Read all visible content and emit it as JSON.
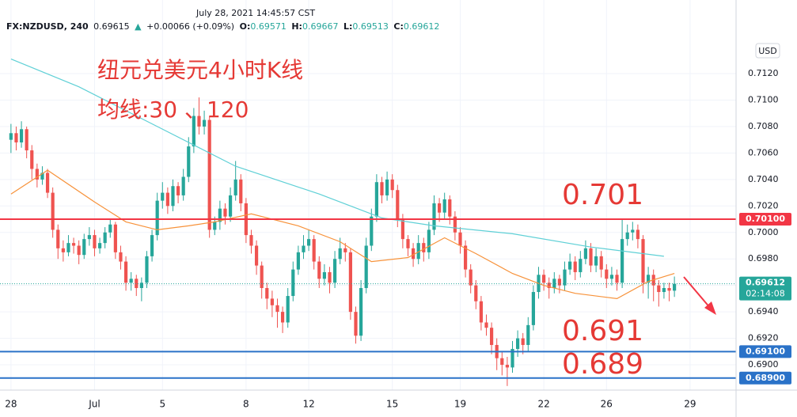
{
  "header": {
    "time": "July 28, 2021 14:45:57 CST",
    "symbol": "FX:NZDUSD, 240",
    "price": "0.69615",
    "arrow": "▲",
    "change": "+0.00066 (+0.09%)",
    "o_label": "O:",
    "o": "0.69571",
    "h_label": "H:",
    "h": "0.69667",
    "l_label": "L:",
    "l": "0.69513",
    "c_label": "C:",
    "c": "0.69612",
    "currency": "USD"
  },
  "chart_data": {
    "type": "candlestick",
    "annotations": [
      "纽元兑美元4小时K线",
      "均线:30 、120",
      "0.701",
      "0.691",
      "0.689"
    ],
    "up_color": "#26a69a",
    "down_color": "#ef5350",
    "xlim": [
      -2.1,
      138.8
    ],
    "xticks": [
      {
        "value": 0,
        "label": "28"
      },
      {
        "value": 16,
        "label": "Jul"
      },
      {
        "value": 29,
        "label": "5"
      },
      {
        "value": 45,
        "label": "8"
      },
      {
        "value": 57,
        "label": "12"
      },
      {
        "value": 73,
        "label": "15"
      },
      {
        "value": 86,
        "label": "19"
      },
      {
        "value": 102,
        "label": "22"
      },
      {
        "value": 114,
        "label": "26"
      },
      {
        "value": 130,
        "label": "29"
      }
    ],
    "ylim": [
      0.68809,
      0.71756
    ],
    "yticks": [
      {
        "value": 0.69,
        "label": "0.6900"
      },
      {
        "value": 0.692,
        "label": "0.6920"
      },
      {
        "value": 0.694,
        "label": "0.6940"
      },
      {
        "value": 0.696,
        "label": "0.6960"
      },
      {
        "value": 0.698,
        "label": "0.6980"
      },
      {
        "value": 0.7,
        "label": "0.7000"
      },
      {
        "value": 0.702,
        "label": "0.7020"
      },
      {
        "value": 0.704,
        "label": "0.7040"
      },
      {
        "value": 0.706,
        "label": "0.7060"
      },
      {
        "value": 0.708,
        "label": "0.7080"
      },
      {
        "value": 0.71,
        "label": "0.7100"
      },
      {
        "value": 0.712,
        "label": "0.7120"
      }
    ],
    "grid": true,
    "candles": [
      [
        0.707,
        0.7082,
        0.706,
        0.7075
      ],
      [
        0.7075,
        0.708,
        0.7062,
        0.7068
      ],
      [
        0.7068,
        0.7084,
        0.7064,
        0.7078
      ],
      [
        0.7078,
        0.708,
        0.7056,
        0.7062
      ],
      [
        0.7062,
        0.7066,
        0.704,
        0.7048
      ],
      [
        0.7048,
        0.7052,
        0.7034,
        0.704
      ],
      [
        0.704,
        0.705,
        0.7036,
        0.7045
      ],
      [
        0.7045,
        0.7048,
        0.7026,
        0.703
      ],
      [
        0.703,
        0.7034,
        0.6996,
        0.7002
      ],
      [
        0.7002,
        0.7006,
        0.698,
        0.6988
      ],
      [
        0.6988,
        0.6994,
        0.6978,
        0.6985
      ],
      [
        0.6985,
        0.6998,
        0.6982,
        0.6992
      ],
      [
        0.6992,
        0.6996,
        0.6984,
        0.699
      ],
      [
        0.699,
        0.6994,
        0.6976,
        0.6983
      ],
      [
        0.6983,
        0.6999,
        0.698,
        0.6995
      ],
      [
        0.6995,
        0.7004,
        0.699,
        0.6998
      ],
      [
        0.6998,
        0.7002,
        0.6982,
        0.6988
      ],
      [
        0.6988,
        0.6996,
        0.6984,
        0.6992
      ],
      [
        0.6992,
        0.7004,
        0.6988,
        0.7
      ],
      [
        0.7,
        0.701,
        0.6996,
        0.7006
      ],
      [
        0.7006,
        0.7008,
        0.698,
        0.6985
      ],
      [
        0.6985,
        0.699,
        0.6972,
        0.6978
      ],
      [
        0.6978,
        0.6982,
        0.6956,
        0.6962
      ],
      [
        0.6962,
        0.697,
        0.6956,
        0.6965
      ],
      [
        0.6965,
        0.6968,
        0.6952,
        0.6958
      ],
      [
        0.6958,
        0.6966,
        0.6948,
        0.6962
      ],
      [
        0.6962,
        0.6986,
        0.6958,
        0.6982
      ],
      [
        0.6982,
        0.7002,
        0.6978,
        0.6998
      ],
      [
        0.6998,
        0.703,
        0.6994,
        0.7024
      ],
      [
        0.7024,
        0.7038,
        0.7018,
        0.703
      ],
      [
        0.703,
        0.7034,
        0.7014,
        0.702
      ],
      [
        0.702,
        0.704,
        0.7016,
        0.7035
      ],
      [
        0.7035,
        0.7038,
        0.7022,
        0.7028
      ],
      [
        0.7028,
        0.7048,
        0.7024,
        0.7042
      ],
      [
        0.7042,
        0.7072,
        0.7038,
        0.7065
      ],
      [
        0.7065,
        0.7094,
        0.706,
        0.7088
      ],
      [
        0.7088,
        0.7102,
        0.7074,
        0.708
      ],
      [
        0.708,
        0.7092,
        0.7074,
        0.7085
      ],
      [
        0.7085,
        0.7088,
        0.6996,
        0.7002
      ],
      [
        0.7002,
        0.7012,
        0.6998,
        0.7008
      ],
      [
        0.7008,
        0.7024,
        0.7002,
        0.7018
      ],
      [
        0.7018,
        0.7022,
        0.7006,
        0.7012
      ],
      [
        0.7012,
        0.7034,
        0.7008,
        0.7028
      ],
      [
        0.7028,
        0.7054,
        0.7024,
        0.704
      ],
      [
        0.704,
        0.7044,
        0.7016,
        0.7022
      ],
      [
        0.7022,
        0.7026,
        0.6992,
        0.6998
      ],
      [
        0.6998,
        0.7002,
        0.6984,
        0.699
      ],
      [
        0.699,
        0.6994,
        0.6968,
        0.6975
      ],
      [
        0.6975,
        0.6978,
        0.695,
        0.6958
      ],
      [
        0.6958,
        0.6962,
        0.6942,
        0.695
      ],
      [
        0.695,
        0.6956,
        0.6936,
        0.6945
      ],
      [
        0.6945,
        0.695,
        0.6928,
        0.694
      ],
      [
        0.694,
        0.6944,
        0.6924,
        0.6932
      ],
      [
        0.6932,
        0.6958,
        0.6928,
        0.6952
      ],
      [
        0.6952,
        0.6978,
        0.6948,
        0.6972
      ],
      [
        0.6972,
        0.699,
        0.6968,
        0.6985
      ],
      [
        0.6985,
        0.6998,
        0.698,
        0.699
      ],
      [
        0.699,
        0.7002,
        0.6986,
        0.6995
      ],
      [
        0.6995,
        0.6998,
        0.6972,
        0.6978
      ],
      [
        0.6978,
        0.6982,
        0.6958,
        0.6965
      ],
      [
        0.6965,
        0.6976,
        0.696,
        0.697
      ],
      [
        0.697,
        0.6974,
        0.6954,
        0.6962
      ],
      [
        0.6962,
        0.6986,
        0.6958,
        0.698
      ],
      [
        0.698,
        0.6996,
        0.6976,
        0.6988
      ],
      [
        0.6988,
        0.6992,
        0.6978,
        0.6985
      ],
      [
        0.6985,
        0.6988,
        0.6934,
        0.694
      ],
      [
        0.694,
        0.6944,
        0.6916,
        0.6922
      ],
      [
        0.6922,
        0.6964,
        0.6918,
        0.6958
      ],
      [
        0.6958,
        0.6996,
        0.6954,
        0.699
      ],
      [
        0.699,
        0.7018,
        0.6986,
        0.7012
      ],
      [
        0.7012,
        0.7044,
        0.7008,
        0.7038
      ],
      [
        0.7038,
        0.7042,
        0.7022,
        0.7028
      ],
      [
        0.7028,
        0.7046,
        0.7024,
        0.704
      ],
      [
        0.704,
        0.7044,
        0.7026,
        0.7032
      ],
      [
        0.7032,
        0.7036,
        0.7004,
        0.701
      ],
      [
        0.701,
        0.7014,
        0.6988,
        0.6995
      ],
      [
        0.6995,
        0.6998,
        0.6982,
        0.6988
      ],
      [
        0.6988,
        0.6992,
        0.6974,
        0.698
      ],
      [
        0.698,
        0.6998,
        0.6976,
        0.6992
      ],
      [
        0.6992,
        0.6996,
        0.6978,
        0.6985
      ],
      [
        0.6985,
        0.7008,
        0.698,
        0.7002
      ],
      [
        0.7002,
        0.7028,
        0.6998,
        0.7022
      ],
      [
        0.7022,
        0.7026,
        0.7008,
        0.7015
      ],
      [
        0.7015,
        0.703,
        0.701,
        0.7025
      ],
      [
        0.7025,
        0.7028,
        0.7006,
        0.7012
      ],
      [
        0.7012,
        0.7016,
        0.6994,
        0.7
      ],
      [
        0.7,
        0.7004,
        0.6984,
        0.699
      ],
      [
        0.699,
        0.6994,
        0.6966,
        0.6972
      ],
      [
        0.6972,
        0.6976,
        0.6954,
        0.696
      ],
      [
        0.696,
        0.6964,
        0.6942,
        0.6948
      ],
      [
        0.6948,
        0.6952,
        0.6926,
        0.6932
      ],
      [
        0.6932,
        0.6938,
        0.6922,
        0.6928
      ],
      [
        0.6928,
        0.6932,
        0.6908,
        0.6915
      ],
      [
        0.6915,
        0.692,
        0.6896,
        0.6905
      ],
      [
        0.6905,
        0.691,
        0.6892,
        0.69
      ],
      [
        0.69,
        0.6906,
        0.6884,
        0.6898
      ],
      [
        0.6898,
        0.6918,
        0.6894,
        0.6912
      ],
      [
        0.6912,
        0.6926,
        0.6906,
        0.692
      ],
      [
        0.692,
        0.6924,
        0.6908,
        0.6915
      ],
      [
        0.6915,
        0.6936,
        0.691,
        0.693
      ],
      [
        0.693,
        0.696,
        0.6926,
        0.6955
      ],
      [
        0.6955,
        0.6974,
        0.695,
        0.6968
      ],
      [
        0.6968,
        0.6972,
        0.6956,
        0.6962
      ],
      [
        0.6962,
        0.6966,
        0.695,
        0.6958
      ],
      [
        0.6958,
        0.697,
        0.6954,
        0.6965
      ],
      [
        0.6965,
        0.6968,
        0.6954,
        0.696
      ],
      [
        0.696,
        0.6978,
        0.6956,
        0.6972
      ],
      [
        0.6972,
        0.6984,
        0.6968,
        0.6978
      ],
      [
        0.6978,
        0.6982,
        0.6964,
        0.697
      ],
      [
        0.697,
        0.6986,
        0.6966,
        0.698
      ],
      [
        0.698,
        0.6994,
        0.6976,
        0.6988
      ],
      [
        0.6988,
        0.6992,
        0.697,
        0.6975
      ],
      [
        0.6975,
        0.6988,
        0.697,
        0.6982
      ],
      [
        0.6982,
        0.6986,
        0.6966,
        0.6972
      ],
      [
        0.6972,
        0.6976,
        0.6958,
        0.6965
      ],
      [
        0.6965,
        0.6974,
        0.696,
        0.6968
      ],
      [
        0.6968,
        0.6972,
        0.6956,
        0.6962
      ],
      [
        0.6962,
        0.701,
        0.6958,
        0.6995
      ],
      [
        0.6995,
        0.7006,
        0.699,
        0.7
      ],
      [
        0.7,
        0.7008,
        0.6994,
        0.7002
      ],
      [
        0.7002,
        0.7006,
        0.6988,
        0.6995
      ],
      [
        0.6995,
        0.6998,
        0.6954,
        0.6962
      ],
      [
        0.6962,
        0.6974,
        0.695,
        0.6968
      ],
      [
        0.6968,
        0.6972,
        0.6948,
        0.696
      ],
      [
        0.696,
        0.6964,
        0.6944,
        0.6955
      ],
      [
        0.6955,
        0.6962,
        0.695,
        0.6958
      ],
      [
        0.6958,
        0.6962,
        0.6948,
        0.6956
      ],
      [
        0.6956,
        0.69667,
        0.69513,
        0.69612
      ]
    ],
    "series": [
      {
        "color": "#f7923a",
        "x": [
          0,
          7,
          16,
          22,
          28,
          34,
          39,
          46,
          55,
          63,
          69,
          76,
          83,
          89,
          96,
          102,
          108,
          116,
          122,
          127
        ],
        "values": [
          0.7029,
          0.7047,
          0.7023,
          0.7008,
          0.7002,
          0.7005,
          0.7008,
          0.7014,
          0.7005,
          0.6993,
          0.6978,
          0.6981,
          0.6996,
          0.6984,
          0.6969,
          0.696,
          0.6954,
          0.695,
          0.6963,
          0.6969
        ]
      },
      {
        "color": "#5fd0d6",
        "x": [
          0,
          13,
          28,
          43,
          59,
          71,
          81,
          96,
          111,
          125
        ],
        "values": [
          0.7131,
          0.711,
          0.708,
          0.705,
          0.7029,
          0.7011,
          0.7005,
          0.6999,
          0.6989,
          0.6982
        ]
      }
    ],
    "levels": [
      {
        "value": 0.701,
        "label": "0.70100",
        "color": "#f23645"
      },
      {
        "value": 0.691,
        "label": "0.69100",
        "color": "#2a72c8"
      },
      {
        "value": 0.689,
        "label": "0.68900",
        "color": "#2a72c8"
      }
    ],
    "last": {
      "value": 0.69612,
      "label": "0.69612",
      "countdown": "02:14:08",
      "color": "#26a69a"
    }
  }
}
